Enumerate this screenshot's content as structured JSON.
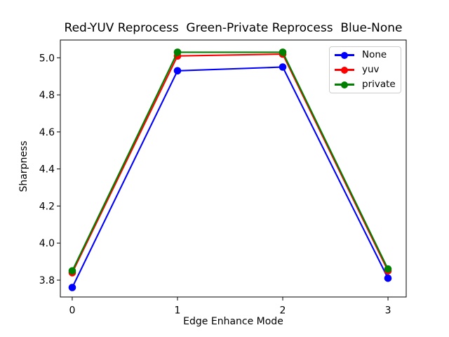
{
  "figure": {
    "background": "#ffffff"
  },
  "chart_data": {
    "type": "line",
    "title": "Red-YUV Reprocess  Green-Private Reprocess  Blue-None",
    "xlabel": "Edge Enhance Mode",
    "ylabel": "Sharpness",
    "x": [
      0,
      1,
      2,
      3
    ],
    "series": [
      {
        "name": "None",
        "color": "#0000ff",
        "values": [
          3.76,
          4.93,
          4.95,
          3.81
        ]
      },
      {
        "name": "yuv",
        "color": "#ff0000",
        "values": [
          3.84,
          5.01,
          5.02,
          3.85
        ]
      },
      {
        "name": "private",
        "color": "#008000",
        "values": [
          3.85,
          5.03,
          5.03,
          3.86
        ]
      }
    ],
    "xticks": [
      0,
      1,
      2,
      3
    ],
    "xtick_labels": [
      "0",
      "1",
      "2",
      "3"
    ],
    "yticks": [
      3.8,
      4.0,
      4.2,
      4.4,
      4.6,
      4.8,
      5.0
    ],
    "ytick_labels": [
      "3.8",
      "4.0",
      "4.2",
      "4.4",
      "4.6",
      "4.8",
      "5.0"
    ],
    "xlim": [
      -0.113,
      3.173
    ],
    "ylim": [
      3.709,
      5.096
    ],
    "grid": false,
    "marker": "circle",
    "line_width": 2.1,
    "marker_radius": 5.3,
    "axis_color": "#000000",
    "legend": {
      "position": "upper-right",
      "entries": [
        "None",
        "yuv",
        "private"
      ],
      "border_color": "#cccccc"
    }
  }
}
